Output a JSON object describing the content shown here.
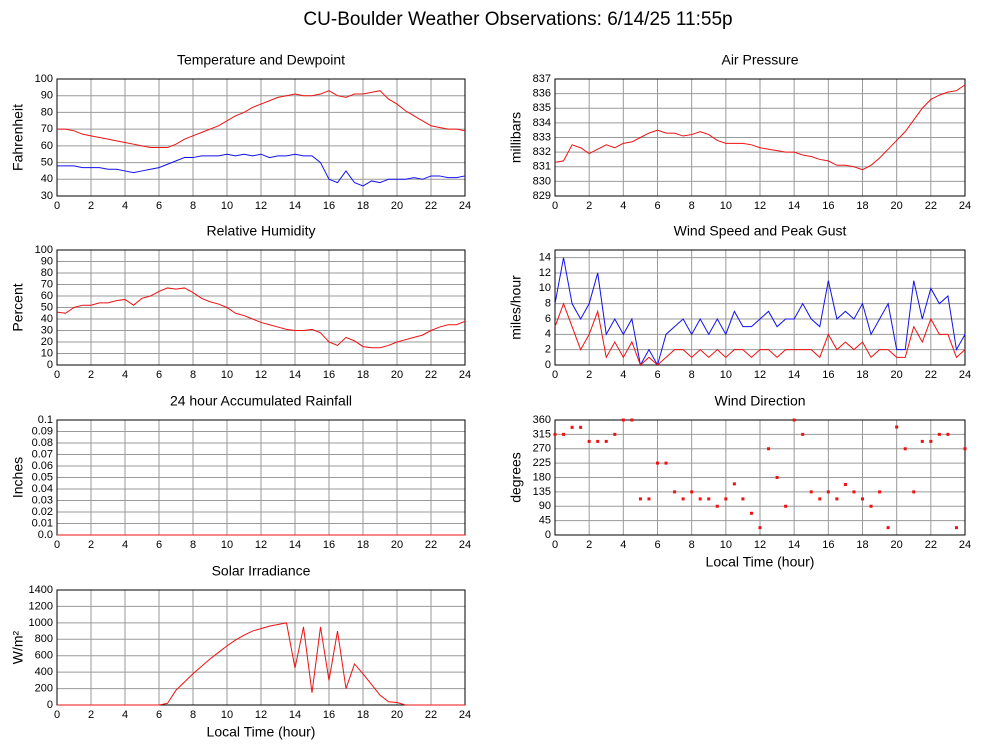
{
  "title": "CU-Boulder Weather Observations: 6/14/25 11:55p",
  "chart_data": [
    {
      "type": "line",
      "title": "Temperature and Dewpoint",
      "ylabel": "Fahrenheit",
      "x": [
        0,
        0.5,
        1,
        1.5,
        2,
        2.5,
        3,
        3.5,
        4,
        4.5,
        5,
        5.5,
        6,
        6.5,
        7,
        7.5,
        8,
        8.5,
        9,
        9.5,
        10,
        10.5,
        11,
        11.5,
        12,
        12.5,
        13,
        13.5,
        14,
        14.5,
        15,
        15.5,
        16,
        16.5,
        17,
        17.5,
        18,
        18.5,
        19,
        19.5,
        20,
        20.5,
        21,
        21.5,
        22,
        22.5,
        23,
        23.5,
        24
      ],
      "series": [
        {
          "color": "#ee1111",
          "values": [
            70,
            70,
            69,
            67,
            66,
            65,
            64,
            63,
            62,
            61,
            60,
            59,
            59,
            59,
            61,
            64,
            66,
            68,
            70,
            72,
            75,
            78,
            80,
            83,
            85,
            87,
            89,
            90,
            91,
            90,
            90,
            91,
            93,
            90,
            89,
            91,
            91,
            92,
            93,
            88,
            85,
            81,
            78,
            75,
            72,
            71,
            70,
            70,
            69
          ]
        },
        {
          "color": "#1111ee",
          "values": [
            48,
            48,
            48,
            47,
            47,
            47,
            46,
            46,
            45,
            44,
            45,
            46,
            47,
            49,
            51,
            53,
            53,
            54,
            54,
            54,
            55,
            54,
            55,
            54,
            55,
            53,
            54,
            54,
            55,
            54,
            54,
            50,
            40,
            38,
            45,
            38,
            36,
            39,
            38,
            40,
            40,
            40,
            41,
            40,
            42,
            42,
            41,
            41,
            42
          ]
        }
      ],
      "xlim": [
        0,
        24
      ],
      "xticks": [
        0,
        2,
        4,
        6,
        8,
        10,
        12,
        14,
        16,
        18,
        20,
        22,
        24
      ],
      "ylim": [
        30,
        100
      ],
      "yticks": [
        30,
        40,
        50,
        60,
        70,
        80,
        90,
        100
      ],
      "grid": true
    },
    {
      "type": "line",
      "title": "Air Pressure",
      "ylabel": "millibars",
      "x": [
        0,
        0.5,
        1,
        1.5,
        2,
        2.5,
        3,
        3.5,
        4,
        4.5,
        5,
        5.5,
        6,
        6.5,
        7,
        7.5,
        8,
        8.5,
        9,
        9.5,
        10,
        10.5,
        11,
        11.5,
        12,
        12.5,
        13,
        13.5,
        14,
        14.5,
        15,
        15.5,
        16,
        16.5,
        17,
        17.5,
        18,
        18.5,
        19,
        19.5,
        20,
        20.5,
        21,
        21.5,
        22,
        22.5,
        23,
        23.5,
        24
      ],
      "series": [
        {
          "color": "#ee1111",
          "values": [
            831.3,
            831.4,
            832.5,
            832.3,
            831.9,
            832.2,
            832.5,
            832.3,
            832.6,
            832.7,
            833.0,
            833.3,
            833.5,
            833.3,
            833.3,
            833.1,
            833.2,
            833.4,
            833.2,
            832.8,
            832.6,
            832.6,
            832.6,
            832.5,
            832.3,
            832.2,
            832.1,
            832.0,
            832.0,
            831.8,
            831.7,
            831.5,
            831.4,
            831.1,
            831.1,
            831.0,
            830.8,
            831.1,
            831.6,
            832.2,
            832.8,
            833.4,
            834.2,
            835.0,
            835.6,
            835.9,
            836.1,
            836.2,
            836.6
          ]
        }
      ],
      "xlim": [
        0,
        24
      ],
      "xticks": [
        0,
        2,
        4,
        6,
        8,
        10,
        12,
        14,
        16,
        18,
        20,
        22,
        24
      ],
      "ylim": [
        829,
        837
      ],
      "yticks": [
        829,
        830,
        831,
        832,
        833,
        834,
        835,
        836,
        837
      ],
      "grid": true
    },
    {
      "type": "line",
      "title": "Relative Humidity",
      "ylabel": "Percent",
      "x": [
        0,
        0.5,
        1,
        1.5,
        2,
        2.5,
        3,
        3.5,
        4,
        4.5,
        5,
        5.5,
        6,
        6.5,
        7,
        7.5,
        8,
        8.5,
        9,
        9.5,
        10,
        10.5,
        11,
        11.5,
        12,
        12.5,
        13,
        13.5,
        14,
        14.5,
        15,
        15.5,
        16,
        16.5,
        17,
        17.5,
        18,
        18.5,
        19,
        19.5,
        20,
        20.5,
        21,
        21.5,
        22,
        22.5,
        23,
        23.5,
        24
      ],
      "series": [
        {
          "color": "#ee1111",
          "values": [
            46,
            45,
            50,
            52,
            52,
            54,
            54,
            56,
            57,
            52,
            58,
            60,
            64,
            67,
            66,
            67,
            63,
            58,
            55,
            53,
            50,
            45,
            43,
            40,
            37,
            35,
            33,
            31,
            30,
            30,
            31,
            28,
            20,
            17,
            24,
            21,
            16,
            15,
            15,
            17,
            20,
            22,
            24,
            26,
            30,
            33,
            35,
            35,
            38
          ]
        }
      ],
      "xlim": [
        0,
        24
      ],
      "xticks": [
        0,
        2,
        4,
        6,
        8,
        10,
        12,
        14,
        16,
        18,
        20,
        22,
        24
      ],
      "ylim": [
        0,
        100
      ],
      "yticks": [
        0,
        10,
        20,
        30,
        40,
        50,
        60,
        70,
        80,
        90,
        100
      ],
      "grid": true
    },
    {
      "type": "line",
      "title": "Wind Speed and Peak Gust",
      "ylabel": "miles/hour",
      "x": [
        0,
        0.5,
        1,
        1.5,
        2,
        2.5,
        3,
        3.5,
        4,
        4.5,
        5,
        5.5,
        6,
        6.5,
        7,
        7.5,
        8,
        8.5,
        9,
        9.5,
        10,
        10.5,
        11,
        11.5,
        12,
        12.5,
        13,
        13.5,
        14,
        14.5,
        15,
        15.5,
        16,
        16.5,
        17,
        17.5,
        18,
        18.5,
        19,
        19.5,
        20,
        20.5,
        21,
        21.5,
        22,
        22.5,
        23,
        23.5,
        24
      ],
      "series": [
        {
          "color": "#1111ee",
          "values": [
            8,
            14,
            8,
            6,
            8,
            12,
            4,
            6,
            4,
            6,
            0,
            2,
            0,
            4,
            5,
            6,
            4,
            6,
            4,
            6,
            4,
            7,
            5,
            5,
            6,
            7,
            5,
            6,
            6,
            8,
            6,
            5,
            11,
            6,
            7,
            6,
            8,
            4,
            6,
            8,
            2,
            2,
            11,
            6,
            10,
            8,
            9,
            2,
            4
          ]
        },
        {
          "color": "#ee1111",
          "values": [
            5,
            8,
            5,
            2,
            4,
            7,
            1,
            3,
            1,
            3,
            0,
            1,
            0,
            1,
            2,
            2,
            1,
            2,
            1,
            2,
            1,
            2,
            2,
            1,
            2,
            2,
            1,
            2,
            2,
            2,
            2,
            1,
            4,
            2,
            3,
            2,
            3,
            1,
            2,
            2,
            1,
            1,
            5,
            3,
            6,
            4,
            4,
            1,
            2
          ]
        }
      ],
      "xlim": [
        0,
        24
      ],
      "xticks": [
        0,
        2,
        4,
        6,
        8,
        10,
        12,
        14,
        16,
        18,
        20,
        22,
        24
      ],
      "ylim": [
        0,
        15
      ],
      "yticks": [
        0,
        2,
        4,
        6,
        8,
        10,
        12,
        14
      ],
      "grid": true
    },
    {
      "type": "line",
      "title": "24 hour Accumulated Rainfall",
      "ylabel": "Inches",
      "x": [
        0,
        0.5,
        1,
        1.5,
        2,
        2.5,
        3,
        3.5,
        4,
        4.5,
        5,
        5.5,
        6,
        6.5,
        7,
        7.5,
        8,
        8.5,
        9,
        9.5,
        10,
        10.5,
        11,
        11.5,
        12,
        12.5,
        13,
        13.5,
        14,
        14.5,
        15,
        15.5,
        16,
        16.5,
        17,
        17.5,
        18,
        18.5,
        19,
        19.5,
        20,
        20.5,
        21,
        21.5,
        22,
        22.5,
        23,
        23.5,
        24
      ],
      "series": [
        {
          "color": "#ee1111",
          "values": [
            0,
            0,
            0,
            0,
            0,
            0,
            0,
            0,
            0,
            0,
            0,
            0,
            0,
            0,
            0,
            0,
            0,
            0,
            0,
            0,
            0,
            0,
            0,
            0,
            0,
            0,
            0,
            0,
            0,
            0,
            0,
            0,
            0,
            0,
            0,
            0,
            0,
            0,
            0,
            0,
            0,
            0,
            0,
            0,
            0,
            0,
            0,
            0,
            0
          ]
        }
      ],
      "xlim": [
        0,
        24
      ],
      "xticks": [
        0,
        2,
        4,
        6,
        8,
        10,
        12,
        14,
        16,
        18,
        20,
        22,
        24
      ],
      "ylim": [
        0,
        0.1
      ],
      "yticks": [
        {
          "value": 0,
          "label": "0.0"
        },
        0.01,
        0.02,
        0.03,
        0.04,
        0.05,
        0.06,
        0.07,
        0.08,
        0.09,
        0.1
      ],
      "grid": true
    },
    {
      "type": "scatter",
      "title": "Wind Direction",
      "ylabel": "degrees",
      "xlabel": "Local Time (hour)",
      "x": [
        0,
        0.5,
        1,
        1.5,
        2,
        2.5,
        3,
        3.5,
        4,
        4.5,
        5,
        5.5,
        6,
        6.5,
        7,
        7.5,
        8,
        8.5,
        9,
        9.5,
        10,
        10.5,
        11,
        11.5,
        12,
        12.5,
        13,
        13.5,
        14,
        14.5,
        15,
        15.5,
        16,
        16.5,
        17,
        17.5,
        18,
        18.5,
        19,
        19.5,
        20,
        20.5,
        21,
        21.5,
        22,
        22.5,
        23,
        23.5,
        24
      ],
      "series": [
        {
          "color": "#ee1111",
          "values": [
            315,
            315,
            337,
            337,
            293,
            293,
            293,
            315,
            360,
            360,
            113,
            113,
            225,
            225,
            135,
            113,
            135,
            113,
            113,
            90,
            113,
            160,
            113,
            68,
            23,
            270,
            180,
            90,
            360,
            315,
            135,
            113,
            135,
            113,
            158,
            135,
            113,
            90,
            135,
            23,
            338,
            270,
            135,
            293,
            293,
            315,
            315,
            23,
            270
          ]
        }
      ],
      "xlim": [
        0,
        24
      ],
      "xticks": [
        0,
        2,
        4,
        6,
        8,
        10,
        12,
        14,
        16,
        18,
        20,
        22,
        24
      ],
      "ylim": [
        0,
        360
      ],
      "yticks": [
        0,
        45,
        90,
        135,
        180,
        225,
        270,
        315,
        360
      ],
      "grid": true
    },
    {
      "type": "line",
      "title": "Solar Irradiance",
      "ylabel": "W/m²",
      "xlabel": "Local Time (hour)",
      "x": [
        0,
        0.5,
        1,
        1.5,
        2,
        2.5,
        3,
        3.5,
        4,
        4.5,
        5,
        5.5,
        6,
        6.5,
        7,
        7.5,
        8,
        8.5,
        9,
        9.5,
        10,
        10.5,
        11,
        11.5,
        12,
        12.5,
        13,
        13.5,
        14,
        14.5,
        15,
        15.5,
        16,
        16.5,
        17,
        17.5,
        18,
        18.5,
        19,
        19.5,
        20,
        20.5,
        21,
        21.5,
        22,
        22.5,
        23,
        23.5,
        24
      ],
      "series": [
        {
          "color": "#ee1111",
          "values": [
            0,
            0,
            0,
            0,
            0,
            0,
            0,
            0,
            0,
            0,
            0,
            0,
            0,
            20,
            180,
            280,
            380,
            470,
            560,
            640,
            720,
            790,
            850,
            900,
            930,
            960,
            980,
            1000,
            450,
            950,
            150,
            950,
            300,
            900,
            200,
            500,
            380,
            250,
            120,
            40,
            30,
            0,
            0,
            0,
            0,
            0,
            0,
            0,
            0
          ]
        }
      ],
      "xlim": [
        0,
        24
      ],
      "xticks": [
        0,
        2,
        4,
        6,
        8,
        10,
        12,
        14,
        16,
        18,
        20,
        22,
        24
      ],
      "ylim": [
        0,
        1400
      ],
      "yticks": [
        0,
        200,
        400,
        600,
        800,
        1000,
        1200,
        1400
      ],
      "grid": true
    }
  ]
}
